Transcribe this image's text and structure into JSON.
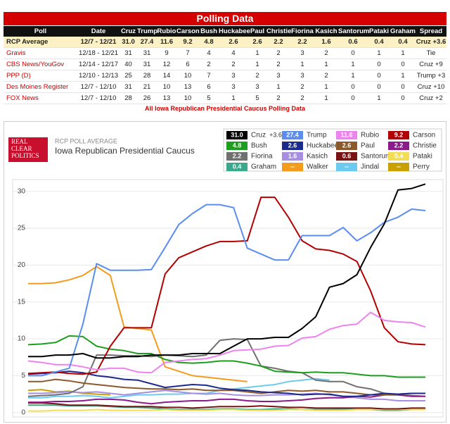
{
  "table": {
    "title": "Polling Data",
    "header": [
      "Poll",
      "Date",
      "Cruz",
      "Trump",
      "Rubio",
      "Carson",
      "Bush",
      "Huckabee",
      "Paul",
      "Christie",
      "Fiorina",
      "Kasich",
      "Santorum",
      "Pataki",
      "Graham",
      "Spread"
    ],
    "rows": [
      [
        "RCP Average",
        "12/7 - 12/21",
        "31.0",
        "27.4",
        "11.6",
        "9.2",
        "4.8",
        "2.6",
        "2.6",
        "2.2",
        "2.2",
        "1.6",
        "0.6",
        "0.4",
        "0.4",
        "Cruz +3.6"
      ],
      [
        "Gravis",
        "12/18 - 12/21",
        "31",
        "31",
        "9",
        "7",
        "4",
        "4",
        "1",
        "2",
        "3",
        "2",
        "0",
        "1",
        "1",
        "Tie"
      ],
      [
        "CBS News/YouGov",
        "12/14 - 12/17",
        "40",
        "31",
        "12",
        "6",
        "2",
        "2",
        "1",
        "2",
        "1",
        "1",
        "1",
        "0",
        "0",
        "Cruz +9"
      ],
      [
        "PPP (D)",
        "12/10 - 12/13",
        "25",
        "28",
        "14",
        "10",
        "7",
        "3",
        "2",
        "3",
        "3",
        "2",
        "1",
        "0",
        "1",
        "Trump +3"
      ],
      [
        "Des Moines Register",
        "12/7 - 12/10",
        "31",
        "21",
        "10",
        "13",
        "6",
        "3",
        "3",
        "1",
        "2",
        "1",
        "0",
        "0",
        "0",
        "Cruz +10"
      ],
      [
        "FOX News",
        "12/7 - 12/10",
        "28",
        "26",
        "13",
        "10",
        "5",
        "1",
        "5",
        "2",
        "2",
        "1",
        "0",
        "1",
        "0",
        "Cruz +2"
      ]
    ],
    "footer_link": "All Iowa Republican Presidential Caucus Polling Data"
  },
  "logo": [
    "REAL",
    "CLEAR",
    "POLITICS"
  ],
  "chart_data": {
    "type": "line",
    "subtitle": "RCP POLL AVERAGE",
    "title": "Iowa Republican Presidential Caucus",
    "categories": [
      null,
      null,
      null,
      null,
      null,
      null,
      null,
      null,
      null,
      null,
      null,
      null,
      null,
      null,
      null,
      null,
      null,
      null,
      null,
      null,
      null,
      null,
      null,
      null,
      null,
      null,
      null,
      null,
      null,
      null
    ],
    "ylim": [
      -0.6,
      31.6
    ],
    "yticks": [
      0,
      5,
      10,
      15,
      20,
      25,
      30
    ],
    "grid": true,
    "series": [
      {
        "name": "Cruz",
        "color": "#000000",
        "legend_label": "31.0",
        "legend_note": "+3.6",
        "values": [
          7.6,
          7.6,
          7.8,
          7.8,
          8,
          7.4,
          7.4,
          7.6,
          7.6,
          7.8,
          7.8,
          7.8,
          8,
          8,
          8,
          9,
          10,
          10,
          10.2,
          10.2,
          11.4,
          13,
          17,
          17.5,
          18.7,
          22.4,
          25.6,
          30.2,
          30.4,
          31.0
        ]
      },
      {
        "name": "Trump",
        "color": "#5b8def",
        "legend_label": "27.4",
        "values": [
          5,
          5,
          5.5,
          6,
          12,
          20.2,
          19.3,
          19.3,
          19.3,
          19.4,
          22.4,
          25.5,
          27,
          28.2,
          28.2,
          27.8,
          22.3,
          21.5,
          20.7,
          20.7,
          24,
          24,
          24,
          25.1,
          23.3,
          24.4,
          25.8,
          26.5,
          27.6,
          27.4
        ]
      },
      {
        "name": "Rubio",
        "color": "#ee82ee",
        "legend_label": "11.6",
        "values": [
          7,
          6.8,
          6.5,
          6.5,
          6.2,
          5.8,
          6,
          6,
          5.5,
          5.4,
          6.8,
          7,
          7.2,
          7.3,
          7.8,
          8.4,
          8.5,
          8.6,
          9,
          9.1,
          10.1,
          10.3,
          11.3,
          11.8,
          12,
          13.6,
          12.5,
          12.3,
          12.2,
          11.6
        ]
      },
      {
        "name": "Carson",
        "color": "#b30000",
        "legend_label": "9.2",
        "values": [
          5.3,
          5.4,
          5.5,
          5.3,
          5.2,
          5.5,
          9,
          11.5,
          11.5,
          11.5,
          18.8,
          21,
          21.8,
          22.6,
          23.2,
          23.2,
          23.3,
          29.2,
          29.2,
          26.5,
          23.3,
          22.2,
          22,
          21.5,
          20.5,
          16.5,
          11.5,
          9.6,
          9.3,
          9.2
        ]
      },
      {
        "name": "Bush",
        "color": "#1e9e1e",
        "legend_label": "4.8",
        "values": [
          9.2,
          9.3,
          9.5,
          10.4,
          10.3,
          9,
          8.6,
          8.4,
          8,
          8,
          7.2,
          6.8,
          6.7,
          6.8,
          7,
          7,
          6.7,
          6.3,
          5.6,
          5.5,
          5.4,
          5.5,
          5.4,
          5.4,
          5.2,
          5,
          5,
          4.8,
          4.8,
          4.8
        ]
      },
      {
        "name": "Huckabee",
        "color": "#1c2a8c",
        "legend_label": "2.6",
        "values": [
          5.2,
          5.3,
          5.4,
          5.6,
          5.4,
          5,
          4.8,
          4.5,
          4.4,
          3.9,
          3.4,
          3.6,
          3.8,
          3.7,
          3.3,
          3.1,
          3,
          2.8,
          2.7,
          2.6,
          2.4,
          2.5,
          2.5,
          2.2,
          2.2,
          2.4,
          2.6,
          2.5,
          2.6,
          2.6
        ]
      },
      {
        "name": "Paul",
        "color": "#8b5a2b",
        "legend_label": "2.6",
        "values": [
          4.2,
          4.2,
          4.5,
          4.3,
          4,
          3.8,
          3.6,
          3.4,
          3.3,
          3.2,
          3.2,
          3.1,
          3.2,
          3,
          3,
          3,
          2.8,
          2.6,
          2.8,
          3,
          2.9,
          3,
          2.8,
          2.8,
          2.6,
          2.4,
          2.4,
          2.5,
          2.6,
          2.6
        ]
      },
      {
        "name": "Christie",
        "color": "#8b1a8b",
        "legend_label": "2.2",
        "values": [
          1.4,
          1.4,
          1.5,
          1.5,
          1.6,
          1.8,
          1.8,
          1.7,
          1.4,
          1.2,
          1.4,
          1.5,
          1.6,
          1.6,
          1.8,
          1.8,
          1.6,
          1.5,
          1.5,
          1.6,
          1.7,
          1.9,
          2,
          2,
          2.2,
          2.1,
          2.4,
          2.4,
          2.2,
          2.2
        ]
      },
      {
        "name": "Fiorina",
        "color": "#707070",
        "legend_label": "2.2",
        "values": [
          2.2,
          2.3,
          2.4,
          2.6,
          3.5,
          7.8,
          7.8,
          7.7,
          7.7,
          7.6,
          7.8,
          7.7,
          7.6,
          7.8,
          9.8,
          10,
          9.9,
          6.3,
          6,
          5.6,
          5.4,
          4.4,
          4.2,
          4.2,
          3.5,
          3.2,
          2.6,
          2.4,
          2.3,
          2.2
        ]
      },
      {
        "name": "Kasich",
        "color": "#a68ee0",
        "legend_label": "1.6",
        "values": [
          2.6,
          2.6,
          2.7,
          2.8,
          2.7,
          2.8,
          2.6,
          2.4,
          2.6,
          2.8,
          3,
          2.8,
          2.6,
          2.5,
          2.6,
          2.4,
          2.3,
          2.3,
          2.4,
          2.4,
          2.5,
          2.6,
          2.4,
          2.2,
          2,
          1.8,
          1.8,
          1.6,
          1.6,
          1.6
        ]
      },
      {
        "name": "Santorum",
        "color": "#7a1414",
        "legend_label": "0.6",
        "values": [
          1.3,
          1.3,
          1.2,
          1,
          1,
          1,
          0.9,
          0.8,
          0.8,
          0.8,
          0.7,
          0.7,
          0.6,
          0.7,
          0.8,
          0.8,
          0.8,
          0.9,
          0.8,
          0.7,
          0.7,
          0.6,
          0.6,
          0.6,
          0.6,
          0.6,
          0.5,
          0.5,
          0.6,
          0.6
        ]
      },
      {
        "name": "Pataki",
        "color": "#f2dd55",
        "legend_label": "0.4",
        "values": [
          0.2,
          0.2,
          0.3,
          0.3,
          0.3,
          0.4,
          0.3,
          0.3,
          0.3,
          0.3,
          0.4,
          0.3,
          0.3,
          0.3,
          0.4,
          0.4,
          0.3,
          0.3,
          0.3,
          0.4,
          0.4,
          0.3,
          0.3,
          0.3,
          0.4,
          0.4,
          0.4,
          0.4,
          0.4,
          0.4
        ]
      },
      {
        "name": "Graham",
        "color": "#3aa88a",
        "legend_label": "0.4",
        "values": [
          1,
          1,
          1,
          0.9,
          0.9,
          0.9,
          0.8,
          0.7,
          0.7,
          0.6,
          0.5,
          0.4,
          0.4,
          0.4,
          0.5,
          0.5,
          0.4,
          0.4,
          0.5,
          0.5,
          0.4,
          0.4,
          0.4,
          0.5,
          0.4,
          0.4,
          0.3,
          0.3,
          0.4,
          0.4
        ]
      },
      {
        "name": "Walker",
        "color": "#f39c1c",
        "legend_label": "--",
        "values": [
          17.5,
          17.5,
          17.6,
          18,
          18.6,
          19.8,
          18.6,
          11.6,
          11.4,
          11.2,
          6.2,
          5.6,
          5,
          4.8,
          4.6,
          4.4,
          4.2,
          null,
          null,
          null,
          null,
          null,
          null,
          null,
          null,
          null,
          null,
          null,
          null,
          null
        ]
      },
      {
        "name": "Jindal",
        "color": "#6ccaf0",
        "legend_label": "--",
        "values": [
          2,
          2,
          2.2,
          2.2,
          2.3,
          2.2,
          2,
          2.2,
          2.4,
          2.4,
          2.5,
          2.5,
          2.6,
          2.6,
          3,
          3.2,
          3.4,
          3.6,
          3.8,
          4.2,
          4.4,
          4.6,
          4.4,
          null,
          null,
          null,
          null,
          null,
          null,
          null
        ]
      },
      {
        "name": "Perry",
        "color": "#c8a000",
        "legend_label": "--",
        "values": [
          3,
          3.1,
          2.8,
          2.9,
          2.6,
          2.5,
          2.4,
          null,
          null,
          null,
          null,
          null,
          null,
          null,
          null,
          null,
          null,
          null,
          null,
          null,
          null,
          null,
          null,
          null,
          null,
          null,
          null,
          null,
          null,
          null
        ]
      }
    ]
  }
}
